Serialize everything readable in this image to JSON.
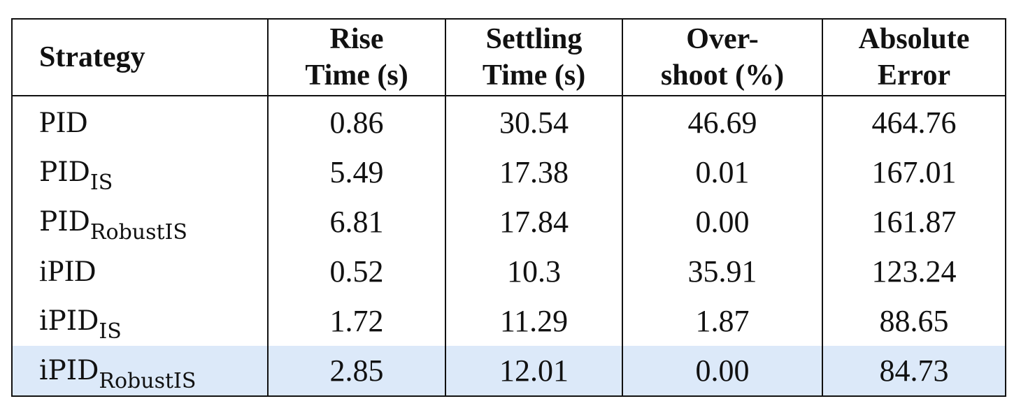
{
  "table": {
    "headers": [
      {
        "line1": "Strategy",
        "line2": ""
      },
      {
        "line1": "Rise",
        "line2": "Time (s)"
      },
      {
        "line1": "Settling",
        "line2": "Time (s)"
      },
      {
        "line1": "Over-",
        "line2": "shoot (%)"
      },
      {
        "line1": "Absolute",
        "line2": "Error"
      }
    ],
    "rows": [
      {
        "base": "PID",
        "sub": "",
        "rise": "0.86",
        "settling": "30.54",
        "overshoot": "46.69",
        "error": "464.76"
      },
      {
        "base": "PID",
        "sub": "IS",
        "rise": "5.49",
        "settling": "17.38",
        "overshoot": "0.01",
        "error": "167.01"
      },
      {
        "base": "PID",
        "sub": "RobustIS",
        "rise": "6.81",
        "settling": "17.84",
        "overshoot": "0.00",
        "error": "161.87"
      },
      {
        "base": "iPID",
        "sub": "",
        "rise": "0.52",
        "settling": "10.3",
        "overshoot": "35.91",
        "error": "123.24"
      },
      {
        "base": "iPID",
        "sub": "IS",
        "rise": "1.72",
        "settling": "11.29",
        "overshoot": "1.87",
        "error": "88.65"
      },
      {
        "base": "iPID",
        "sub": "RobustIS",
        "rise": "2.85",
        "settling": "12.01",
        "overshoot": "0.00",
        "error": "84.73"
      }
    ],
    "highlight_color": "#dce9f9"
  }
}
